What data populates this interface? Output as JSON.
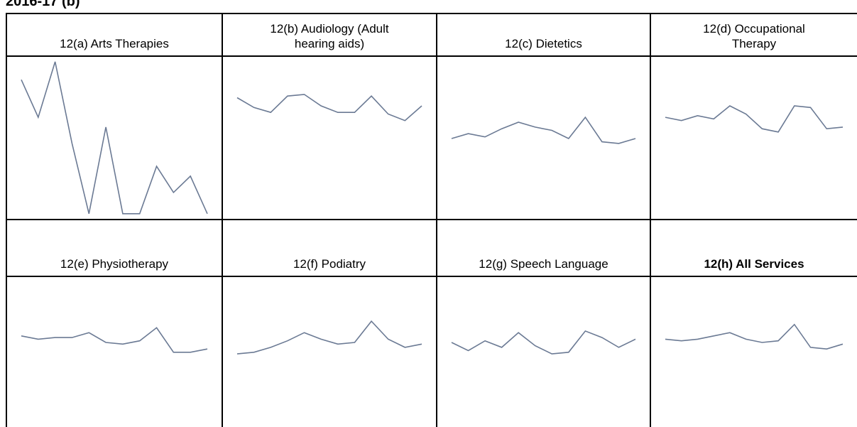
{
  "header": {
    "title": "2016-17 (b)"
  },
  "chart_data": [
    {
      "type": "line",
      "title": "12(a) Arts Therapies",
      "color": "#6b7a94",
      "ylim": [
        0,
        100
      ],
      "values": [
        86,
        63,
        97,
        47,
        4,
        57,
        4,
        4,
        33,
        17,
        27,
        4
      ]
    },
    {
      "type": "line",
      "title": "12(b) Audiology (Adult hearing aids)",
      "color": "#6b7a94",
      "ylim": [
        0,
        100
      ],
      "values": [
        75,
        69,
        66,
        76,
        77,
        70,
        66,
        66,
        76,
        65,
        61,
        70
      ]
    },
    {
      "type": "line",
      "title": "12(c) Dietetics",
      "color": "#6b7a94",
      "ylim": [
        0,
        100
      ],
      "values": [
        50,
        53,
        51,
        56,
        60,
        57,
        55,
        50,
        63,
        48,
        47,
        50
      ]
    },
    {
      "type": "line",
      "title": "12(d) Occupational Therapy",
      "color": "#6b7a94",
      "ylim": [
        0,
        100
      ],
      "values": [
        63,
        61,
        64,
        62,
        70,
        65,
        56,
        54,
        70,
        69,
        56,
        57
      ]
    },
    {
      "type": "line",
      "title": "12(e) Physiotherapy",
      "color": "#6b7a94",
      "ylim": [
        0,
        100
      ],
      "values": [
        64,
        62,
        63,
        63,
        66,
        60,
        59,
        61,
        69,
        54,
        54,
        56
      ]
    },
    {
      "type": "line",
      "title": "12(f) Podiatry",
      "color": "#6b7a94",
      "ylim": [
        0,
        100
      ],
      "values": [
        53,
        54,
        57,
        61,
        66,
        62,
        59,
        60,
        73,
        62,
        57,
        59
      ]
    },
    {
      "type": "line",
      "title": "12(g) Speech Language",
      "color": "#6b7a94",
      "ylim": [
        0,
        100
      ],
      "values": [
        60,
        55,
        61,
        57,
        66,
        58,
        53,
        54,
        67,
        63,
        57,
        62
      ]
    },
    {
      "type": "line",
      "title": "12(h) All Services",
      "bold": true,
      "color": "#6b7a94",
      "ylim": [
        0,
        100
      ],
      "values": [
        62,
        61,
        62,
        64,
        66,
        62,
        60,
        61,
        71,
        57,
        56,
        59
      ]
    }
  ]
}
